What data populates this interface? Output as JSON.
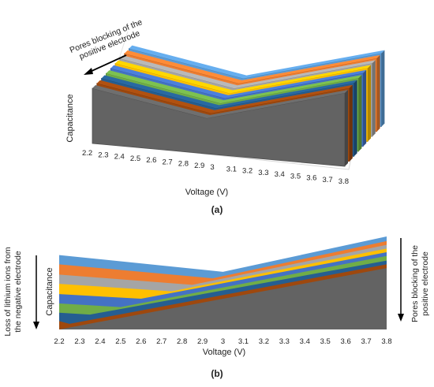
{
  "chart_data": [
    {
      "panel": "(a)",
      "type": "area",
      "view": "3d-stacked-ribbons",
      "ylabel": "Capacitance",
      "xlabel": "Voltage (V)",
      "x": [
        "2.2",
        "2.3",
        "2.4",
        "2.5",
        "2.6",
        "2.7",
        "2.8",
        "2.9",
        "3",
        "3.1",
        "3.2",
        "3.3",
        "3.4",
        "3.5",
        "3.6",
        "3.7",
        "3.8"
      ],
      "annotation": "Pores blocking of the positive electrode",
      "series_colors": [
        "#5b9bd5",
        "#ed7d31",
        "#a5a5a5",
        "#ffc000",
        "#4472c4",
        "#70ad47",
        "#255e91",
        "#9e480e",
        "#636363"
      ],
      "grid": false,
      "legend": "none"
    },
    {
      "panel": "(b)",
      "type": "area",
      "view": "front",
      "ylabel": "Capacitance",
      "xlabel": "Voltage (V)",
      "x": [
        "2.2",
        "2.3",
        "2.4",
        "2.5",
        "2.6",
        "2.7",
        "2.8",
        "2.9",
        "3",
        "3.1",
        "3.2",
        "3.3",
        "3.4",
        "3.5",
        "3.6",
        "3.7",
        "3.8"
      ],
      "left_annotation": "Loss of lithium ions from the negative electrode",
      "right_annotation": "Pores blocking of the positive electrode",
      "series": [
        {
          "color": "#5b9bd5",
          "start": 0.8,
          "min_voltage": 3.0,
          "min": 0.62,
          "end": 1.0
        },
        {
          "color": "#ed7d31",
          "start": 0.7,
          "min_voltage": 2.95,
          "min": 0.55,
          "end": 0.95
        },
        {
          "color": "#a5a5a5",
          "start": 0.59,
          "min_voltage": 2.85,
          "min": 0.48,
          "end": 0.91
        },
        {
          "color": "#ffc000",
          "start": 0.49,
          "min_voltage": 2.75,
          "min": 0.41,
          "end": 0.87
        },
        {
          "color": "#4472c4",
          "start": 0.38,
          "min_voltage": 2.6,
          "min": 0.33,
          "end": 0.83
        },
        {
          "color": "#70ad47",
          "start": 0.28,
          "min_voltage": 2.5,
          "min": 0.24,
          "end": 0.79
        },
        {
          "color": "#255e91",
          "start": 0.18,
          "min_voltage": 2.35,
          "min": 0.16,
          "end": 0.74
        },
        {
          "color": "#9e480e",
          "start": 0.09,
          "min_voltage": 2.25,
          "min": 0.06,
          "end": 0.7
        },
        {
          "color": "#636363",
          "start": 0.0,
          "min_voltage": 2.2,
          "min": 0.0,
          "end": 0.66
        }
      ],
      "grid": false,
      "legend": "none"
    }
  ],
  "captions": {
    "a": "(a)",
    "b": "(b)"
  }
}
